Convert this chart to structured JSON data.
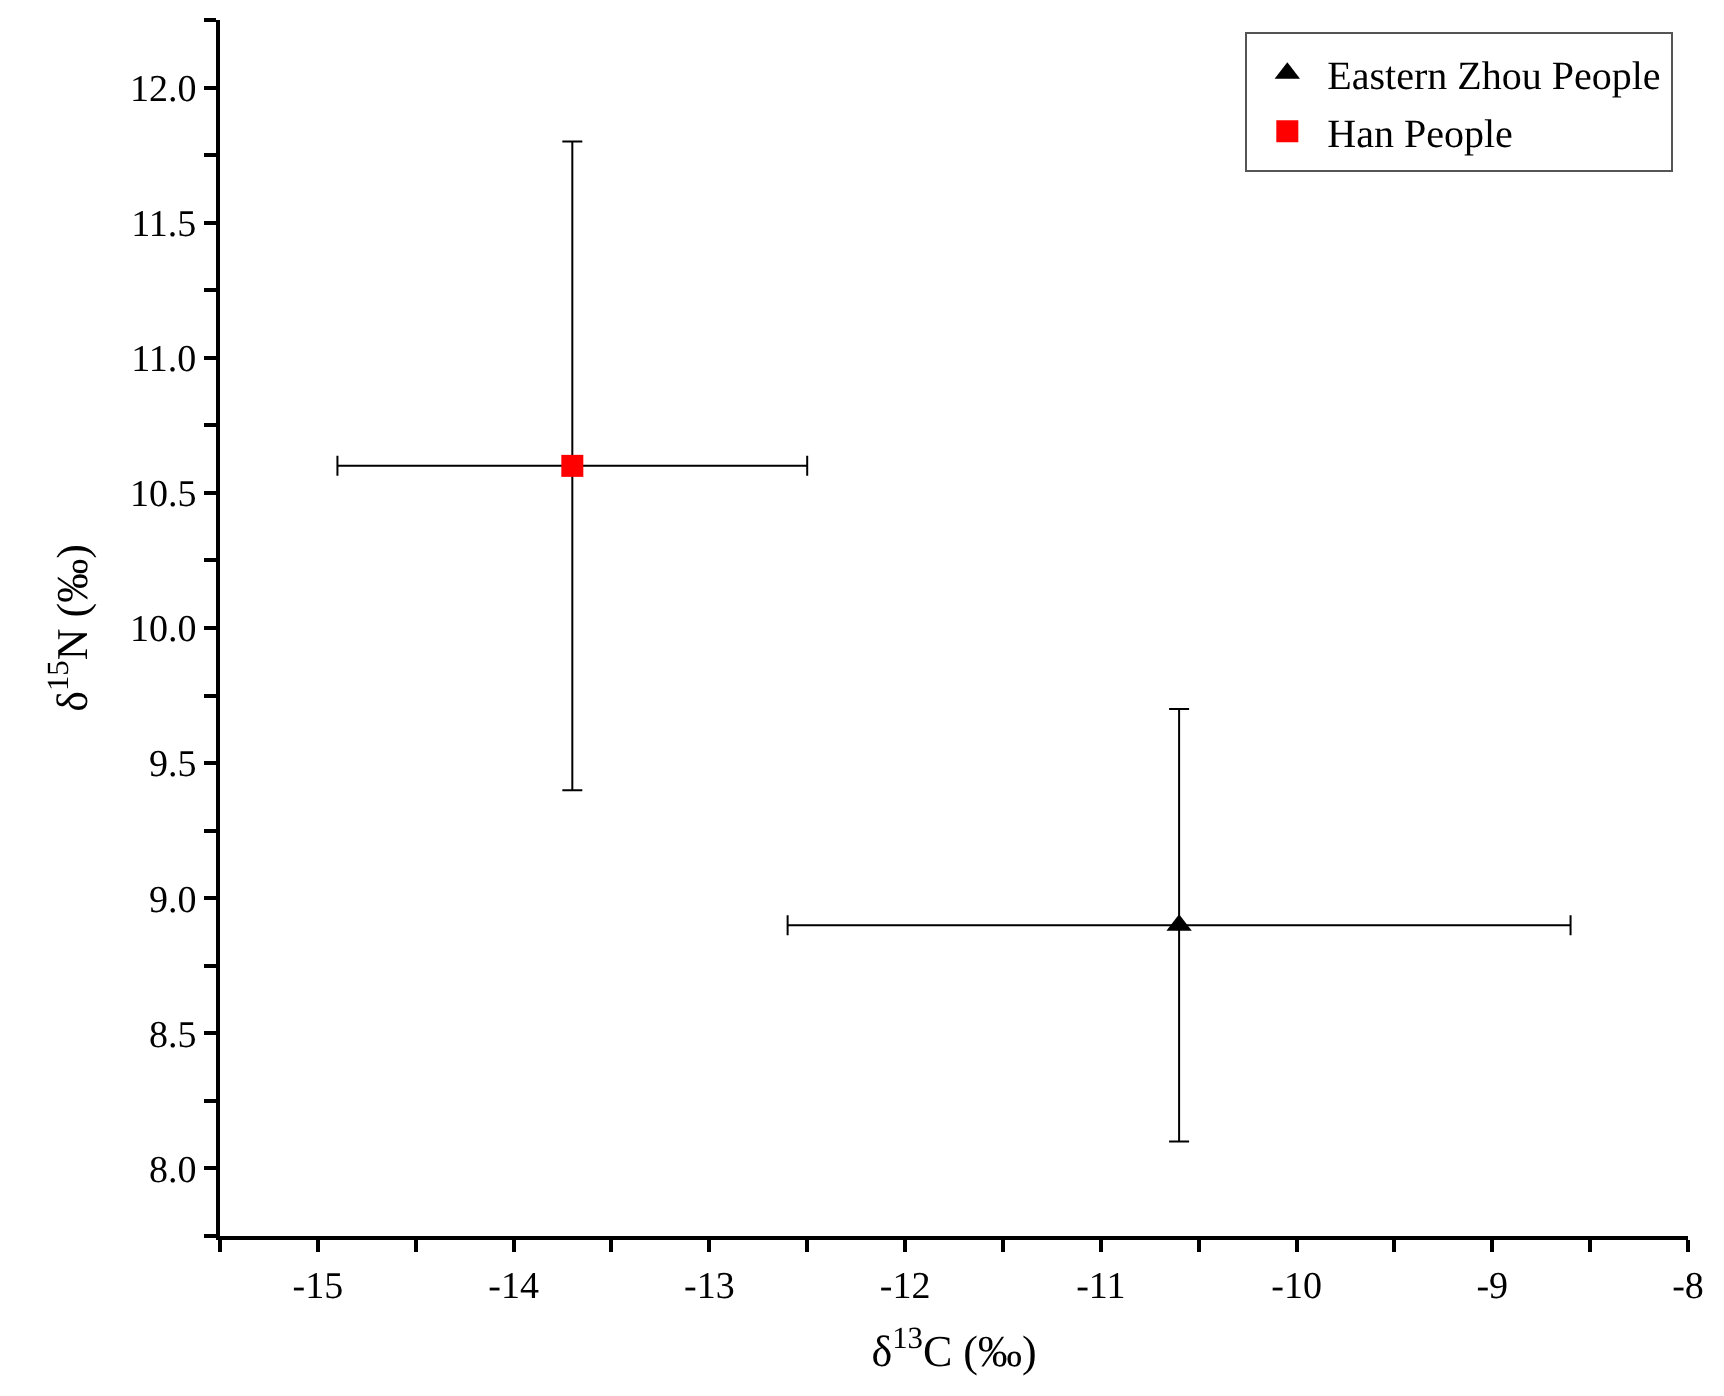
{
  "chart_data": {
    "type": "scatter",
    "xlabel": "δ$^{13}$C (‰)",
    "ylabel": "δ$^{15}$N (‰)",
    "series": [
      {
        "name": "Eastern Zhou People",
        "color": "#000000",
        "marker": "triangle",
        "x": [
          -10.6
        ],
        "values": [
          8.9
        ],
        "errors": [
          0.8
        ],
        "xerrors": [
          2.0
        ]
      },
      {
        "name": "Han People",
        "color": "#ff0000",
        "marker": "square",
        "x": [
          -13.7
        ],
        "values": [
          10.6
        ],
        "errors": [
          1.2
        ],
        "xerrors": [
          1.2
        ]
      }
    ],
    "xlim": [
      -15.5,
      -8
    ],
    "ylim": [
      7.75,
      12.25
    ],
    "xticks": [
      {
        "value": -15.5,
        "label": null
      },
      -15,
      {
        "value": -14.5,
        "label": null
      },
      -14,
      {
        "value": -13.5,
        "label": null
      },
      -13,
      {
        "value": -12.5,
        "label": null
      },
      -12,
      {
        "value": -11.5,
        "label": null
      },
      -11,
      {
        "value": -10.5,
        "label": null
      },
      -10,
      {
        "value": -9.5,
        "label": null
      },
      -9,
      {
        "value": -8.5,
        "label": null
      },
      -8
    ],
    "yticks": [
      {
        "value": 7.75,
        "label": null
      },
      {
        "value": 8.0,
        "label": "8.0"
      },
      {
        "value": 8.25,
        "label": null
      },
      {
        "value": 8.5,
        "label": "8.5"
      },
      {
        "value": 8.75,
        "label": null
      },
      {
        "value": 9.0,
        "label": "9.0"
      },
      {
        "value": 9.25,
        "label": null
      },
      {
        "value": 9.5,
        "label": "9.5"
      },
      {
        "value": 9.75,
        "label": null
      },
      {
        "value": 10.0,
        "label": "10.0"
      },
      {
        "value": 10.25,
        "label": null
      },
      {
        "value": 10.5,
        "label": "10.5"
      },
      {
        "value": 10.75,
        "label": null
      },
      {
        "value": 11.0,
        "label": "11.0"
      },
      {
        "value": 11.25,
        "label": null
      },
      {
        "value": 11.5,
        "label": "11.5"
      },
      {
        "value": 11.75,
        "label": null
      },
      {
        "value": 12.0,
        "label": "12.0"
      },
      {
        "value": 12.25,
        "label": null
      }
    ],
    "legend": "top right"
  }
}
